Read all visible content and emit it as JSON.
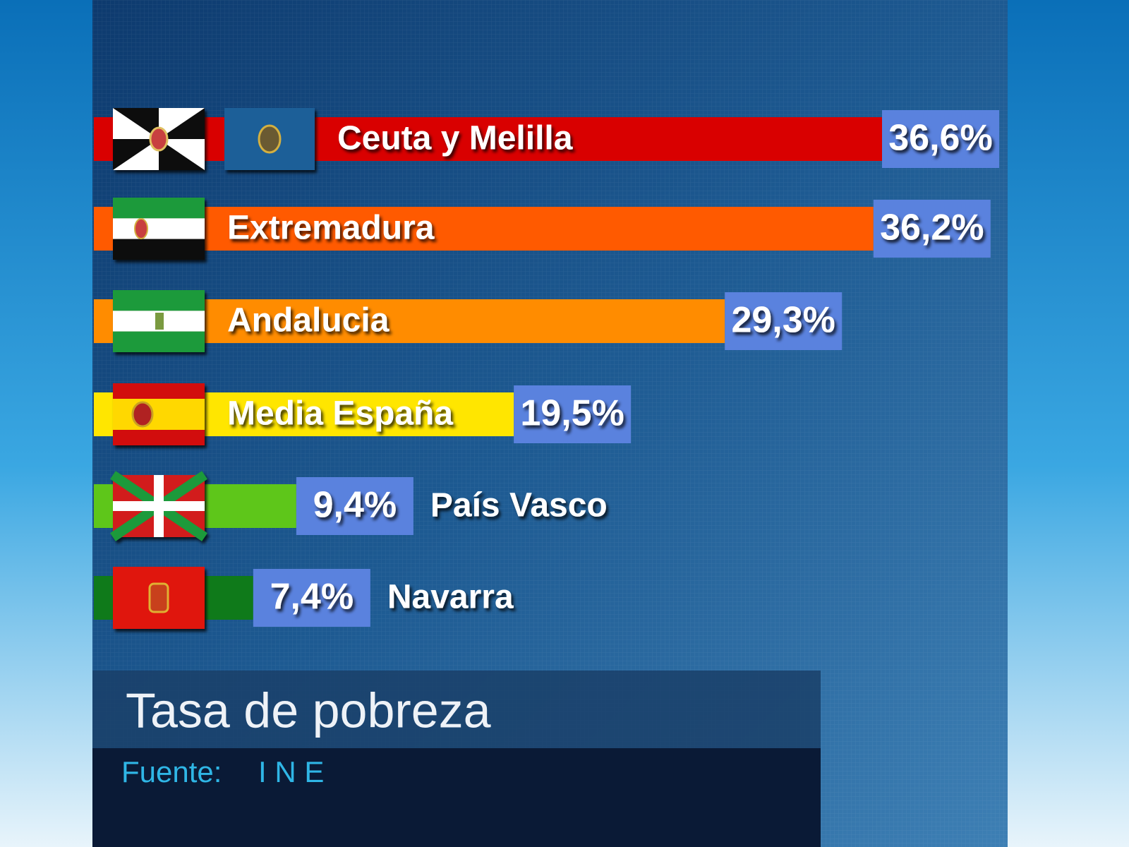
{
  "chart_data": {
    "type": "bar",
    "orientation": "horizontal",
    "title": "Tasa de pobreza",
    "source_label": "Fuente:",
    "source": "I N E",
    "categories": [
      "Ceuta y Melilla",
      "Extremadura",
      "Andalucia",
      "Media España",
      "País Vasco",
      "Navarra"
    ],
    "values": [
      36.6,
      36.2,
      29.3,
      19.5,
      9.4,
      7.4
    ],
    "value_labels": [
      "36,6%",
      "36,2%",
      "29,3%",
      "19,5%",
      "9,4%",
      "7,4%"
    ],
    "colors": [
      "#d90000",
      "#ff5a00",
      "#ff8c00",
      "#ffe600",
      "#5ec61a",
      "#0f7a1a"
    ]
  }
}
